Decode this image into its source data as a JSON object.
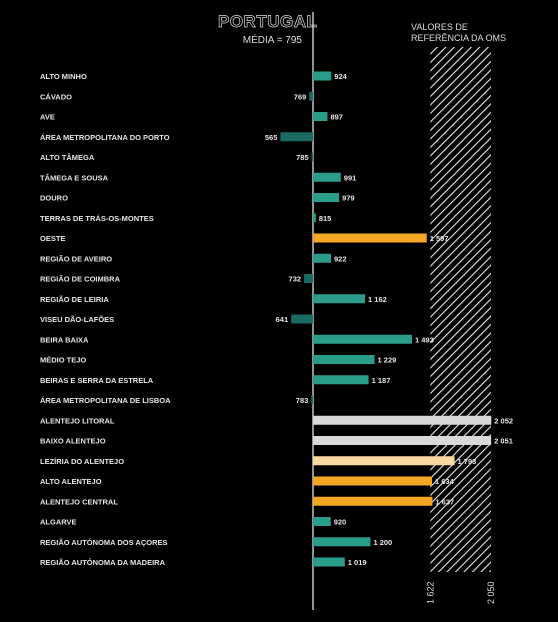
{
  "header": {
    "national_title": "PORTUGAL",
    "national_subtitle": "MÉDIA = 795",
    "reference_title_line1": "VALORES DE",
    "reference_title_line2": "REFERÊNCIA DA OMS"
  },
  "colors": {
    "background": "#000000",
    "below_average": "#1a6b63",
    "above_average_teal": "#2a9d8a",
    "orange": "#f5a623",
    "light_orange": "#f8d9a0",
    "gray": "#d9d9d9",
    "text": "#e6e6e6"
  },
  "chart_data": {
    "type": "bar",
    "orientation": "horizontal",
    "baseline_value": 795,
    "xlim": [
      450,
      2060
    ],
    "reference_range": [
      1622,
      2050
    ],
    "reference_ticks": [
      "1 622",
      "2 050"
    ],
    "categories": [
      "ALTO MINHO",
      "CÁVADO",
      "AVE",
      "ÁREA METROPOLITANA DO PORTO",
      "ALTO TÂMEGA",
      "TÂMEGA E SOUSA",
      "DOURO",
      "TERRAS DE TRÁS-OS-MONTES",
      "OESTE",
      "REGIÃO DE AVEIRO",
      "REGIÃO DE COIMBRA",
      "REGIÃO DE LEIRIA",
      "VISEU DÃO-LAFÕES",
      "BEIRA BAIXA",
      "MÉDIO TEJO",
      "BEIRAS E SERRA DA ESTRELA",
      "ÁREA METROPOLITANA DE LISBOA",
      "ALENTEJO LITORAL",
      "BAIXO ALENTEJO",
      "LEZÍRIA DO ALENTEJO",
      "ALTO ALENTEJO",
      "ALENTEJO CENTRAL",
      "ALGARVE",
      "REGIÃO AUTÓNOMA DOS AÇORES",
      "REGIÃO AUTÓNOMA DA MADEIRA"
    ],
    "values": [
      924,
      769,
      897,
      565,
      785,
      991,
      979,
      815,
      1597,
      922,
      732,
      1162,
      641,
      1493,
      1229,
      1187,
      783,
      2052,
      2051,
      1793,
      1634,
      1637,
      920,
      1200,
      1019
    ],
    "value_labels": [
      "924",
      "769",
      "897",
      "565",
      "785",
      "991",
      "979",
      "815",
      "1 597",
      "922",
      "732",
      "1 162",
      "641",
      "1 493",
      "1 229",
      "1 187",
      "783",
      "2 052",
      "2 051",
      "1 793",
      "1 634",
      "1 637",
      "920",
      "1 200",
      "1 019"
    ],
    "bar_colors": [
      "#2a9d8a",
      "#1a6b63",
      "#2a9d8a",
      "#1a6b63",
      "#1a6b63",
      "#2a9d8a",
      "#2a9d8a",
      "#2a9d8a",
      "#f5a623",
      "#2a9d8a",
      "#1a6b63",
      "#2a9d8a",
      "#1a6b63",
      "#2a9d8a",
      "#2a9d8a",
      "#2a9d8a",
      "#1a6b63",
      "#d9d9d9",
      "#d9d9d9",
      "#f8d9a0",
      "#f5a623",
      "#f5a623",
      "#2a9d8a",
      "#2a9d8a",
      "#2a9d8a"
    ]
  }
}
